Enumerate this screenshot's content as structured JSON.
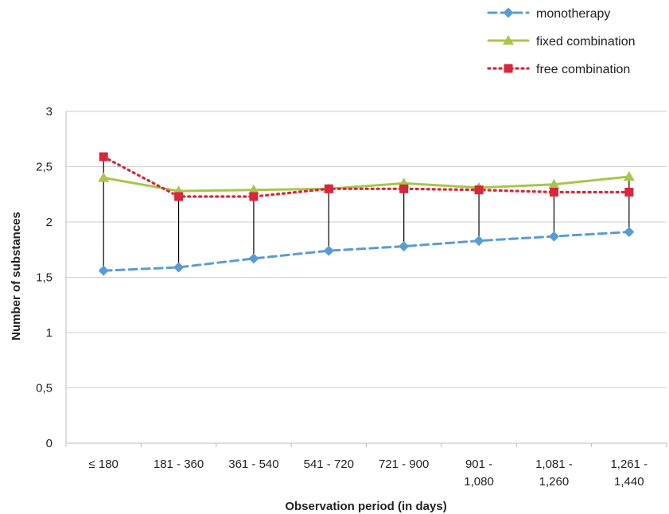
{
  "chart_data": {
    "type": "line",
    "xlabel": "Observation period (in days)",
    "ylabel": "Number of substances",
    "categories": [
      [
        "≤ 180"
      ],
      [
        "181 - 360"
      ],
      [
        "361 - 540"
      ],
      [
        "541 - 720"
      ],
      [
        "721 - 900"
      ],
      [
        "901 -",
        "1,080"
      ],
      [
        "1,081 -",
        "1,260"
      ],
      [
        "1,261 -",
        "1,440"
      ]
    ],
    "ylim": [
      0,
      3
    ],
    "yticks": [
      "0",
      "0,5",
      "1",
      "1,5",
      "2",
      "2,5",
      "3"
    ],
    "grid": true,
    "legend_position": "top-right",
    "series": [
      {
        "name": "monotherapy",
        "values": [
          1.56,
          1.59,
          1.67,
          1.74,
          1.78,
          1.83,
          1.87,
          1.91
        ],
        "color": "#5b9bd5",
        "line": "dashed",
        "marker": "diamond"
      },
      {
        "name": "fixed combination",
        "values": [
          2.4,
          2.28,
          2.29,
          2.3,
          2.35,
          2.31,
          2.34,
          2.41
        ],
        "color": "#a8c64a",
        "line": "solid",
        "marker": "triangle"
      },
      {
        "name": "free combination",
        "values": [
          2.59,
          2.23,
          2.23,
          2.3,
          2.3,
          2.29,
          2.27,
          2.27
        ],
        "color": "#d8263a",
        "line": "dotted",
        "marker": "square"
      }
    ],
    "drop_lines": "vertical black lines from monotherapy to the highest series at each category"
  }
}
